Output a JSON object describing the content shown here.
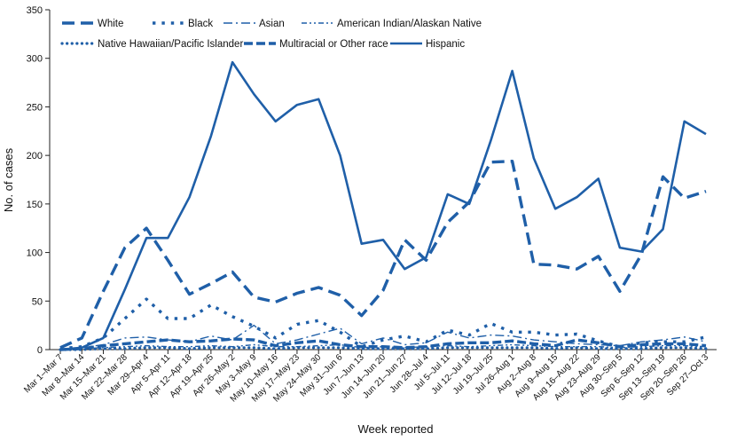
{
  "chart_data": {
    "type": "line",
    "xlabel": "Week reported",
    "ylabel": "No. of cases",
    "ylim": [
      0,
      350
    ],
    "yticks": [
      0,
      50,
      100,
      150,
      200,
      250,
      300,
      350
    ],
    "grid": false,
    "legend_position": "top-left",
    "color": "#1f5fa8",
    "categories": [
      "Mar 1–Mar 7",
      "Mar 8–Mar 14",
      "Mar 15–Mar 21",
      "Mar 22–Mar 28",
      "Mar 29–Apr 4",
      "Apr 5–Apr 11",
      "Apr 12–Apr 18",
      "Apr 19–Apr 25",
      "Apr 26–May 2",
      "May 3–May 9",
      "May 10–May 16",
      "May 17–May 23",
      "May 24–May 30",
      "May 31–Jun 6",
      "Jun 7–Jun 13",
      "Jun 14–Jun 20",
      "Jun 21–Jun 27",
      "Jun 28–Jul 4",
      "Jul 5–Jul 11",
      "Jul 12–Jul 18",
      "Jul 19–Jul 25",
      "Jul 26–Aug 1",
      "Aug 2–Aug 8",
      "Aug 9–Aug 15",
      "Aug 16–Aug 22",
      "Aug 23–Aug 29",
      "Aug 30–Sep 5",
      "Sep 6–Sep 12",
      "Sep 13–Sep 19",
      "Sep 20–Sep 26",
      "Sep 27–Oct 3"
    ],
    "series": [
      {
        "name": "White",
        "dash": "longdash",
        "values": [
          2,
          12,
          60,
          105,
          125,
          92,
          57,
          68,
          80,
          54,
          49,
          58,
          64,
          56,
          35,
          61,
          113,
          92,
          131,
          152,
          193,
          194,
          88,
          87,
          83,
          96,
          60,
          98,
          178,
          156,
          163
        ]
      },
      {
        "name": "Black",
        "dash": "dot-square",
        "values": [
          1,
          3,
          12,
          32,
          52,
          32,
          32,
          46,
          34,
          24,
          12,
          26,
          30,
          18,
          3,
          10,
          14,
          8,
          20,
          15,
          27,
          18,
          18,
          15,
          16,
          9,
          3,
          7,
          8,
          8,
          13
        ]
      },
      {
        "name": "Asian",
        "dash": "dashdot",
        "values": [
          0,
          2,
          5,
          12,
          13,
          10,
          8,
          14,
          10,
          25,
          6,
          10,
          16,
          22,
          6,
          12,
          5,
          7,
          18,
          12,
          15,
          14,
          10,
          8,
          6,
          5,
          4,
          8,
          10,
          13,
          8
        ]
      },
      {
        "name": "American Indian/Alaskan Native",
        "dash": "dashdotdot",
        "values": [
          0,
          1,
          2,
          3,
          4,
          3,
          3,
          4,
          3,
          5,
          3,
          3,
          4,
          5,
          2,
          3,
          2,
          3,
          4,
          3,
          4,
          5,
          4,
          3,
          3,
          3,
          2,
          3,
          4,
          4,
          3
        ]
      },
      {
        "name": "Native Hawaiian/Pacific Islander",
        "dash": "dots",
        "values": [
          0,
          0,
          1,
          1,
          2,
          2,
          1,
          2,
          2,
          2,
          1,
          2,
          2,
          2,
          1,
          1,
          1,
          1,
          2,
          2,
          2,
          2,
          2,
          1,
          2,
          1,
          1,
          1,
          2,
          2,
          1
        ]
      },
      {
        "name": "Multiracial or Other race",
        "dash": "dash",
        "values": [
          0,
          1,
          4,
          6,
          8,
          10,
          8,
          9,
          11,
          10,
          4,
          7,
          9,
          5,
          3,
          3,
          2,
          3,
          6,
          7,
          7,
          9,
          6,
          4,
          10,
          7,
          3,
          5,
          6,
          6,
          4
        ]
      },
      {
        "name": "Hispanic",
        "dash": "solid",
        "values": [
          0,
          2,
          12,
          62,
          115,
          115,
          157,
          220,
          296,
          263,
          235,
          252,
          258,
          200,
          109,
          113,
          83,
          95,
          160,
          150,
          215,
          287,
          197,
          145,
          157,
          176,
          105,
          101,
          124,
          235,
          222
        ]
      }
    ]
  }
}
